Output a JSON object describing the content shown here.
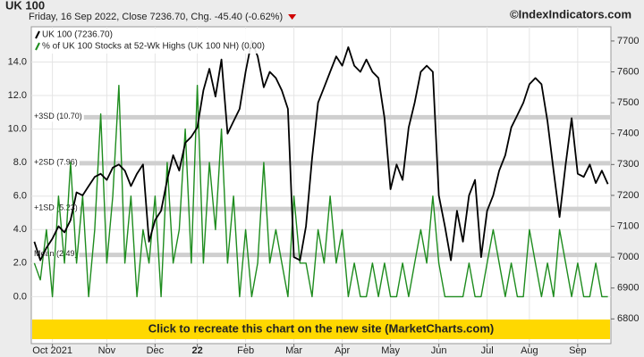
{
  "title": "UK 100",
  "subtitle": "Friday, 16 Sep 2022, Close 7236.70, Chg. -45.40 (-0.62%)",
  "site": "©IndexIndicators.com",
  "banner": "Click to recreate this chart on the new site (MarketCharts.com)",
  "chart_data": {
    "type": "line",
    "categories": [
      null,
      null,
      null,
      "Oct 2021",
      null,
      null,
      null,
      null,
      null,
      null,
      null,
      null,
      "Nov",
      null,
      null,
      null,
      null,
      null,
      null,
      null,
      "Dec",
      null,
      null,
      null,
      null,
      null,
      null,
      "22",
      null,
      null,
      null,
      null,
      null,
      null,
      null,
      "Feb",
      null,
      null,
      null,
      null,
      null,
      null,
      null,
      "Mar",
      null,
      null,
      null,
      null,
      null,
      null,
      null,
      "Apr",
      null,
      null,
      null,
      null,
      null,
      null,
      null,
      "May",
      null,
      null,
      null,
      null,
      null,
      null,
      null,
      "Jun",
      null,
      null,
      null,
      null,
      null,
      null,
      null,
      "Jul",
      null,
      null,
      null,
      null,
      null,
      null,
      "Aug",
      null,
      null,
      null,
      null,
      null,
      null,
      null,
      "Sep",
      null,
      null,
      null,
      null,
      null
    ],
    "series": [
      {
        "name": "UK 100 (7236.70)",
        "color": "#000000",
        "axis": "y2",
        "values": [
          7050,
          6990,
          7030,
          7060,
          7100,
          7080,
          7120,
          7210,
          7200,
          7230,
          7260,
          7270,
          7250,
          7290,
          7300,
          7280,
          7230,
          7270,
          7300,
          7050,
          7120,
          7150,
          7250,
          7330,
          7280,
          7370,
          7390,
          7420,
          7540,
          7610,
          7520,
          7640,
          7400,
          7440,
          7480,
          7600,
          7700,
          7650,
          7550,
          7600,
          7580,
          7540,
          7480,
          7000,
          6990,
          7100,
          7320,
          7500,
          7550,
          7600,
          7650,
          7620,
          7680,
          7620,
          7600,
          7640,
          7600,
          7580,
          7450,
          7220,
          7300,
          7250,
          7420,
          7500,
          7600,
          7620,
          7600,
          7200,
          7100,
          6990,
          7150,
          7050,
          7200,
          7250,
          7000,
          7150,
          7200,
          7280,
          7330,
          7420,
          7460,
          7500,
          7560,
          7580,
          7560,
          7440,
          7280,
          7130,
          7300,
          7450,
          7270,
          7260,
          7300,
          7240,
          7280,
          7236.7
        ]
      },
      {
        "name": "% of UK 100 Stocks at 52-Wk Highs (UK 100 NH) (0.00)",
        "color": "#1e8c1e",
        "axis": "y",
        "values": [
          2,
          1,
          4,
          0,
          6,
          2,
          8,
          2,
          6,
          0,
          4,
          10.9,
          2,
          6,
          12.6,
          2,
          6,
          0,
          4,
          2,
          6,
          0,
          8,
          2,
          4,
          10,
          2,
          12.6,
          2,
          8,
          4,
          10,
          2,
          6,
          0,
          4,
          0,
          2,
          8,
          2,
          4,
          2,
          0,
          6,
          2,
          2,
          0,
          4,
          2,
          6,
          2,
          4,
          0,
          2,
          0,
          0,
          2,
          0,
          2,
          0,
          0,
          2,
          0,
          2,
          4,
          2,
          6,
          2,
          0,
          0,
          0,
          0,
          2,
          0,
          0,
          2,
          4,
          2,
          0,
          2,
          0,
          0,
          4,
          2,
          0,
          2,
          0,
          4,
          2,
          0,
          2,
          0,
          0,
          2,
          0,
          0
        ]
      }
    ],
    "ylim": [
      -2.8,
      16.1
    ],
    "yticks": [
      {
        "value": 0,
        "label": "0.0"
      },
      {
        "value": 2,
        "label": "2.0"
      },
      {
        "value": 4,
        "label": "4.0"
      },
      {
        "value": 6,
        "label": "6.0"
      },
      {
        "value": 8,
        "label": "8.0"
      },
      {
        "value": 10,
        "label": "10.0"
      },
      {
        "value": 12,
        "label": "12.0"
      },
      {
        "value": 14,
        "label": "14.0"
      }
    ],
    "y2lim": [
      6720,
      7746
    ],
    "y2ticks": [
      6800,
      6900,
      7000,
      7100,
      7200,
      7300,
      7400,
      7500,
      7600,
      7700
    ],
    "reference_lines": [
      {
        "label": "+3SD (10.70)",
        "value": 10.7
      },
      {
        "label": "+2SD (7.96)",
        "value": 7.96
      },
      {
        "label": "+1SD (5.23)",
        "value": 5.23
      },
      {
        "label": "Mean (2.49)",
        "value": 2.49
      }
    ],
    "grid": true,
    "legend": "upper left"
  }
}
